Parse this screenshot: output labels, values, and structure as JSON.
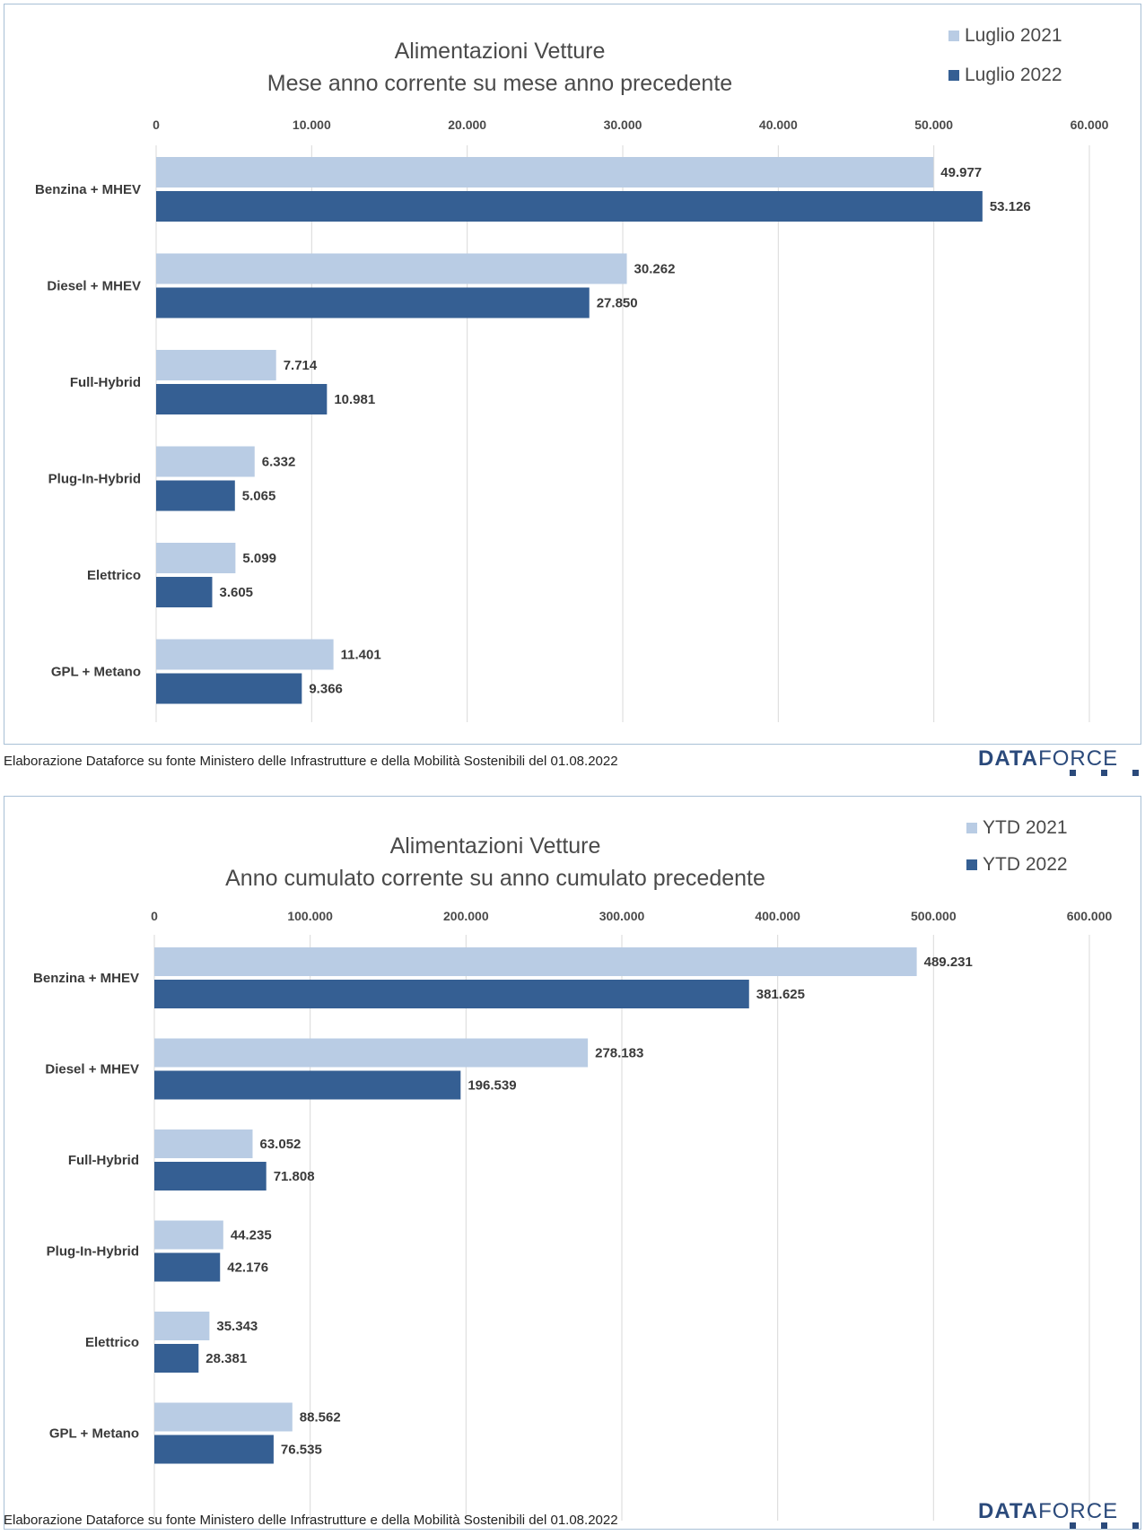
{
  "colors": {
    "series_2021": "#b9cce4",
    "series_2022": "#355f93",
    "grid": "#d9d9d9",
    "border": "#a8c0d6"
  },
  "source_note": "Elaborazione Dataforce su fonte Ministero delle Infrastrutture e della Mobilità Sostenibili del 01.08.2022",
  "logo": {
    "bold": "DATA",
    "regular": "FORCE"
  },
  "chart_data": [
    {
      "type": "bar",
      "orientation": "horizontal",
      "title_line1": "Alimentazioni Vetture",
      "title_line2": "Mese anno corrente su mese anno precedente",
      "categories": [
        "Benzina + MHEV",
        "Diesel + MHEV",
        "Full-Hybrid",
        "Plug-In-Hybrid",
        "Elettrico",
        "GPL + Metano"
      ],
      "series": [
        {
          "name": "Luglio 2021",
          "values": [
            49977,
            30262,
            7714,
            6332,
            5099,
            11401
          ],
          "labels": [
            "49.977",
            "30.262",
            "7.714",
            "6.332",
            "5.099",
            "11.401"
          ]
        },
        {
          "name": "Luglio 2022",
          "values": [
            53126,
            27850,
            10981,
            5065,
            3605,
            9366
          ],
          "labels": [
            "53.126",
            "27.850",
            "10.981",
            "5.065",
            "3.605",
            "9.366"
          ]
        }
      ],
      "xlim": [
        0,
        60000
      ],
      "ticks": [
        0,
        10000,
        20000,
        30000,
        40000,
        50000,
        60000
      ],
      "tick_labels": [
        "0",
        "10.000",
        "20.000",
        "30.000",
        "40.000",
        "50.000",
        "60.000"
      ],
      "axis_position": "top",
      "grid": true,
      "legend_position": "top-right"
    },
    {
      "type": "bar",
      "orientation": "horizontal",
      "title_line1": "Alimentazioni Vetture",
      "title_line2": "Anno cumulato corrente su anno cumulato precedente",
      "categories": [
        "Benzina + MHEV",
        "Diesel + MHEV",
        "Full-Hybrid",
        "Plug-In-Hybrid",
        "Elettrico",
        "GPL + Metano"
      ],
      "series": [
        {
          "name": "YTD 2021",
          "values": [
            489231,
            278183,
            63052,
            44235,
            35343,
            88562
          ],
          "labels": [
            "489.231",
            "278.183",
            "63.052",
            "44.235",
            "35.343",
            "88.562"
          ]
        },
        {
          "name": "YTD 2022",
          "values": [
            381625,
            196539,
            71808,
            42176,
            28381,
            76535
          ],
          "labels": [
            "381.625",
            "196.539",
            "71.808",
            "42.176",
            "28.381",
            "76.535"
          ]
        }
      ],
      "xlim": [
        0,
        600000
      ],
      "ticks": [
        0,
        100000,
        200000,
        300000,
        400000,
        500000,
        600000
      ],
      "tick_labels": [
        "0",
        "100.000",
        "200.000",
        "300.000",
        "400.000",
        "500.000",
        "600.000"
      ],
      "axis_position": "top",
      "grid": true,
      "legend_position": "top-right"
    }
  ]
}
